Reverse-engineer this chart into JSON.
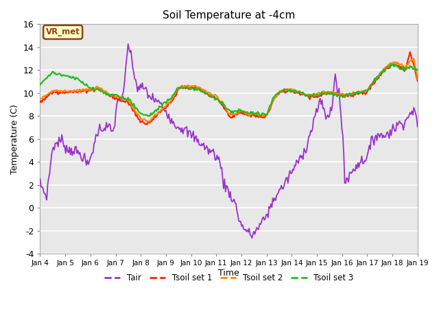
{
  "title": "Soil Temperature at -4cm",
  "xlabel": "Time",
  "ylabel": "Temperature (C)",
  "ylim": [
    -4,
    16
  ],
  "yticks": [
    -4,
    -2,
    0,
    2,
    4,
    6,
    8,
    10,
    12,
    14,
    16
  ],
  "background_color": "#ffffff",
  "plot_bg_color": "#e8e8e8",
  "legend_label": "VR_met",
  "legend_bg": "#ffffcc",
  "legend_border": "#8b4513",
  "series_colors": {
    "Tair": "#9932cc",
    "Tsoil_set1": "#ff2200",
    "Tsoil_set2": "#ff8800",
    "Tsoil_set3": "#22bb22"
  },
  "line_widths": {
    "Tair": 1.3,
    "Tsoil_set1": 1.6,
    "Tsoil_set2": 1.6,
    "Tsoil_set3": 1.6
  },
  "tick_labels": [
    "Jan 4",
    "Jan 5",
    "Jan 6",
    "Jan 7",
    "Jan 8",
    "Jan 9",
    "Jan 10",
    "Jan 11",
    "Jan 12",
    "Jan 13",
    "Jan 14",
    "Jan 15",
    "Jan 16",
    "Jan 17",
    "Jan 18",
    "Jan 19"
  ],
  "tair_x": [
    0,
    0.15,
    0.25,
    0.5,
    0.7,
    0.9,
    1.0,
    1.1,
    1.3,
    1.5,
    1.7,
    1.9,
    2.1,
    2.3,
    2.5,
    2.7,
    2.9,
    3.1,
    3.3,
    3.5,
    3.7,
    3.85,
    4.0,
    4.1,
    4.2,
    4.3,
    4.5,
    4.7,
    4.9,
    5.1,
    5.3,
    5.5,
    5.7,
    5.9,
    6.1,
    6.3,
    6.5,
    6.7,
    6.9,
    7.0,
    7.1,
    7.2,
    7.3,
    7.4,
    7.5,
    7.6,
    7.7,
    7.8,
    7.85,
    7.9,
    8.0,
    8.1,
    8.2,
    8.3,
    8.4,
    8.5,
    8.6,
    8.7,
    8.8,
    8.9,
    9.0,
    9.1,
    9.2,
    9.3,
    9.5,
    9.7,
    9.9,
    10.1,
    10.3,
    10.5,
    10.6,
    10.7,
    10.8,
    10.9,
    11.0,
    11.1,
    11.2,
    11.3,
    11.4,
    11.5,
    11.55,
    11.6,
    11.65,
    11.7,
    11.75,
    11.8,
    11.85,
    11.9,
    11.95,
    12.0,
    12.05,
    12.1,
    12.2,
    12.3,
    12.4,
    12.5,
    12.6,
    12.8,
    13.0,
    13.2,
    13.4,
    13.6,
    13.8,
    14.0,
    14.2,
    14.4,
    14.6,
    14.7,
    14.75,
    14.8,
    14.9,
    15.0
  ],
  "tair_y": [
    2.1,
    1.5,
    0.9,
    5.3,
    5.7,
    5.9,
    5.4,
    5.0,
    5.1,
    4.8,
    4.5,
    3.6,
    5.1,
    6.8,
    7.0,
    7.1,
    6.5,
    9.6,
    9.5,
    14.4,
    12.1,
    10.5,
    10.4,
    10.5,
    10.3,
    9.8,
    9.5,
    9.2,
    8.7,
    8.2,
    7.4,
    7.1,
    6.9,
    6.5,
    6.2,
    5.8,
    5.4,
    5.0,
    4.8,
    4.5,
    4.2,
    3.5,
    2.1,
    1.8,
    1.4,
    1.0,
    0.6,
    0.1,
    -0.5,
    -0.9,
    -1.5,
    -1.7,
    -2.0,
    -2.2,
    -2.4,
    -2.2,
    -1.9,
    -1.7,
    -1.3,
    -1.0,
    -0.6,
    -0.2,
    0.3,
    0.8,
    1.5,
    2.0,
    2.8,
    3.5,
    4.2,
    5.0,
    5.5,
    6.2,
    7.0,
    7.8,
    8.5,
    9.1,
    9.0,
    8.5,
    7.8,
    8.0,
    8.5,
    9.0,
    10.0,
    11.5,
    11.2,
    10.5,
    10.0,
    9.5,
    8.5,
    6.5,
    5.9,
    2.4,
    2.5,
    2.8,
    3.2,
    3.5,
    3.8,
    4.1,
    4.5,
    5.8,
    6.5,
    6.2,
    6.5,
    6.8,
    7.2,
    7.5,
    7.8,
    8.1,
    8.5,
    8.5,
    8.5,
    6.8
  ],
  "tsoil1_x": [
    0,
    0.5,
    1.0,
    1.5,
    2.0,
    2.3,
    2.5,
    2.7,
    3.0,
    3.3,
    3.5,
    3.7,
    4.0,
    4.3,
    4.5,
    4.7,
    5.0,
    5.3,
    5.5,
    5.7,
    6.0,
    6.3,
    6.5,
    6.7,
    7.0,
    7.3,
    7.5,
    7.7,
    8.0,
    8.3,
    8.5,
    8.7,
    9.0,
    9.3,
    9.5,
    9.7,
    10.0,
    10.3,
    10.5,
    10.7,
    11.0,
    11.3,
    11.5,
    11.7,
    12.0,
    12.3,
    12.5,
    12.7,
    13.0,
    13.3,
    13.5,
    13.7,
    14.0,
    14.3,
    14.5,
    14.7,
    14.85,
    15.0
  ],
  "tsoil1_y": [
    9.2,
    10.1,
    10.1,
    10.1,
    10.3,
    10.4,
    10.2,
    9.9,
    9.5,
    9.3,
    9.2,
    8.5,
    7.5,
    7.4,
    7.8,
    8.2,
    8.8,
    9.5,
    10.4,
    10.5,
    10.5,
    10.4,
    10.1,
    9.8,
    9.5,
    8.8,
    8.0,
    8.0,
    8.3,
    8.0,
    8.1,
    7.9,
    8.0,
    9.5,
    10.0,
    10.2,
    10.2,
    10.0,
    9.9,
    9.7,
    9.7,
    10.0,
    10.0,
    9.9,
    9.8,
    9.8,
    9.9,
    10.0,
    10.1,
    11.0,
    11.5,
    12.0,
    12.5,
    12.3,
    12.0,
    13.5,
    12.5,
    11.0
  ],
  "tsoil2_x": [
    0,
    0.5,
    1.0,
    1.5,
    2.0,
    2.3,
    2.5,
    2.7,
    3.0,
    3.3,
    3.5,
    3.7,
    4.0,
    4.3,
    4.5,
    4.7,
    5.0,
    5.3,
    5.5,
    5.7,
    6.0,
    6.3,
    6.5,
    6.7,
    7.0,
    7.3,
    7.5,
    7.7,
    8.0,
    8.3,
    8.5,
    8.7,
    9.0,
    9.3,
    9.5,
    9.7,
    10.0,
    10.3,
    10.5,
    10.7,
    11.0,
    11.3,
    11.5,
    11.7,
    12.0,
    12.3,
    12.5,
    12.7,
    13.0,
    13.3,
    13.5,
    13.7,
    14.0,
    14.3,
    14.5,
    14.7,
    14.85,
    15.0
  ],
  "tsoil2_y": [
    9.5,
    10.2,
    10.2,
    10.2,
    10.3,
    10.5,
    10.3,
    10.0,
    9.7,
    9.5,
    9.4,
    8.7,
    7.8,
    7.5,
    7.9,
    8.3,
    8.9,
    9.6,
    10.5,
    10.6,
    10.6,
    10.5,
    10.3,
    10.0,
    9.7,
    9.0,
    8.2,
    8.1,
    8.5,
    8.1,
    8.2,
    8.0,
    8.1,
    9.6,
    10.1,
    10.3,
    10.3,
    10.1,
    10.0,
    9.9,
    9.9,
    10.1,
    10.1,
    10.0,
    9.9,
    9.9,
    10.0,
    10.1,
    10.2,
    11.2,
    11.7,
    12.2,
    12.7,
    12.5,
    12.2,
    12.8,
    13.0,
    11.2
  ],
  "tsoil3_x": [
    0,
    0.5,
    1.0,
    1.5,
    2.0,
    2.3,
    2.5,
    2.7,
    3.0,
    3.3,
    3.5,
    3.7,
    4.0,
    4.3,
    4.5,
    4.7,
    5.0,
    5.3,
    5.5,
    5.7,
    6.0,
    6.3,
    6.5,
    6.7,
    7.0,
    7.3,
    7.5,
    7.7,
    8.0,
    8.3,
    8.5,
    8.7,
    9.0,
    9.3,
    9.5,
    9.7,
    10.0,
    10.3,
    10.5,
    10.7,
    11.0,
    11.3,
    11.5,
    11.7,
    12.0,
    12.3,
    12.5,
    12.7,
    13.0,
    13.3,
    13.5,
    13.7,
    14.0,
    14.3,
    14.5,
    14.7,
    14.85,
    15.0
  ],
  "tsoil3_y": [
    10.8,
    11.8,
    11.5,
    11.2,
    10.4,
    10.3,
    10.1,
    9.9,
    9.8,
    9.6,
    9.5,
    9.0,
    8.2,
    8.0,
    8.3,
    8.7,
    9.2,
    9.8,
    10.5,
    10.5,
    10.4,
    10.3,
    10.1,
    9.9,
    9.5,
    9.0,
    8.5,
    8.3,
    8.5,
    8.2,
    8.3,
    8.1,
    8.2,
    9.7,
    10.1,
    10.2,
    10.2,
    10.1,
    9.9,
    9.8,
    9.8,
    10.0,
    10.0,
    9.9,
    9.8,
    9.9,
    10.0,
    10.1,
    10.2,
    11.2,
    11.7,
    12.0,
    12.5,
    12.2,
    12.0,
    12.3,
    12.2,
    12.0
  ]
}
